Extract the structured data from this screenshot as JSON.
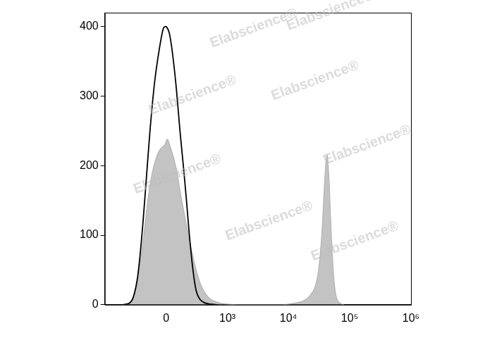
{
  "chart_data": {
    "type": "line",
    "xlim": [
      -1000,
      1000000
    ],
    "xticks": [
      0,
      {
        "value": 1000,
        "label": "10³"
      },
      {
        "value": 10000,
        "label": "10⁴"
      },
      {
        "value": 100000,
        "label": "10⁵"
      },
      {
        "value": 1000000,
        "label": "10⁶"
      }
    ],
    "ylim": [
      0,
      420
    ],
    "yticks": [
      0,
      100,
      200,
      300,
      400
    ],
    "grid": false,
    "annotations": [
      "Elabscience®"
    ],
    "series": [
      {
        "type": "line",
        "color": "#000000",
        "x": [
          -500,
          -380,
          -320,
          -260,
          -210,
          -170,
          -130,
          -90,
          -50,
          -20,
          0,
          25,
          50,
          80,
          110,
          140,
          170,
          200,
          240,
          280,
          330,
          400,
          500,
          700
        ],
        "values": [
          0,
          2,
          10,
          40,
          100,
          170,
          250,
          320,
          370,
          398,
          400,
          390,
          360,
          310,
          250,
          200,
          150,
          100,
          50,
          20,
          8,
          3,
          1,
          0
        ]
      },
      {
        "type": "area",
        "color": "#b4b4b4",
        "x": [
          -500,
          -380,
          -300,
          -240,
          -190,
          -150,
          -110,
          -70,
          -40,
          -10,
          10,
          35,
          60,
          90,
          120,
          150,
          190,
          230,
          280,
          340,
          420,
          520,
          650,
          800,
          1000,
          1500,
          3000,
          6000,
          8000,
          12000,
          17000,
          22000,
          27000,
          31000,
          35000,
          38000,
          41000,
          43000,
          46000,
          49000,
          53000,
          57000,
          62000,
          70000,
          80000
        ],
        "values": [
          0,
          2,
          15,
          50,
          100,
          150,
          190,
          215,
          225,
          230,
          238,
          225,
          210,
          185,
          155,
          130,
          100,
          75,
          50,
          30,
          16,
          8,
          4,
          2,
          1,
          0,
          0,
          0,
          0,
          2,
          5,
          12,
          25,
          50,
          100,
          160,
          205,
          215,
          180,
          120,
          60,
          25,
          8,
          2,
          0
        ]
      }
    ]
  }
}
